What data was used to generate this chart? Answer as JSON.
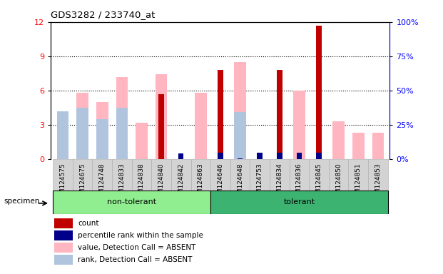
{
  "title": "GDS3282 / 233740_at",
  "samples": [
    "GSM124575",
    "GSM124675",
    "GSM124748",
    "GSM124833",
    "GSM124838",
    "GSM124840",
    "GSM124842",
    "GSM124863",
    "GSM124646",
    "GSM124648",
    "GSM124753",
    "GSM124834",
    "GSM124836",
    "GSM124845",
    "GSM124850",
    "GSM124851",
    "GSM124853"
  ],
  "groups": [
    {
      "label": "non-tolerant",
      "start": 0,
      "end": 7,
      "color": "#90EE90"
    },
    {
      "label": "tolerant",
      "start": 8,
      "end": 16,
      "color": "#3CB371"
    }
  ],
  "count_values": [
    0,
    0,
    0,
    0,
    0,
    5.7,
    0,
    0,
    7.8,
    0,
    0,
    7.8,
    0,
    11.7,
    0,
    0,
    0
  ],
  "percentile_rank_values": [
    0,
    0,
    0,
    0,
    0,
    0,
    4.2,
    0,
    4.5,
    0.5,
    4.3,
    4.3,
    4.3,
    4.3,
    0,
    0,
    0
  ],
  "absent_value_values": [
    3.6,
    5.8,
    5.0,
    7.2,
    3.2,
    7.4,
    0,
    5.8,
    0,
    8.5,
    0,
    0,
    6.0,
    0,
    3.3,
    2.3,
    2.3
  ],
  "absent_rank_values": [
    4.2,
    4.5,
    3.5,
    4.5,
    0,
    0,
    0,
    0,
    0,
    4.1,
    0,
    0,
    0,
    0,
    0,
    0,
    0
  ],
  "ylim_left": [
    0,
    12
  ],
  "ylim_right": [
    0,
    100
  ],
  "yticks_left": [
    0,
    3,
    6,
    9,
    12
  ],
  "yticks_right": [
    0,
    25,
    50,
    75,
    100
  ],
  "ytick_labels_right": [
    "0%",
    "25%",
    "50%",
    "75%",
    "100%"
  ],
  "color_count": "#c00000",
  "color_percentile": "#00008B",
  "color_absent_value": "#FFB6C1",
  "color_absent_rank": "#B0C4DE",
  "group_bg": "#d3d3d3"
}
